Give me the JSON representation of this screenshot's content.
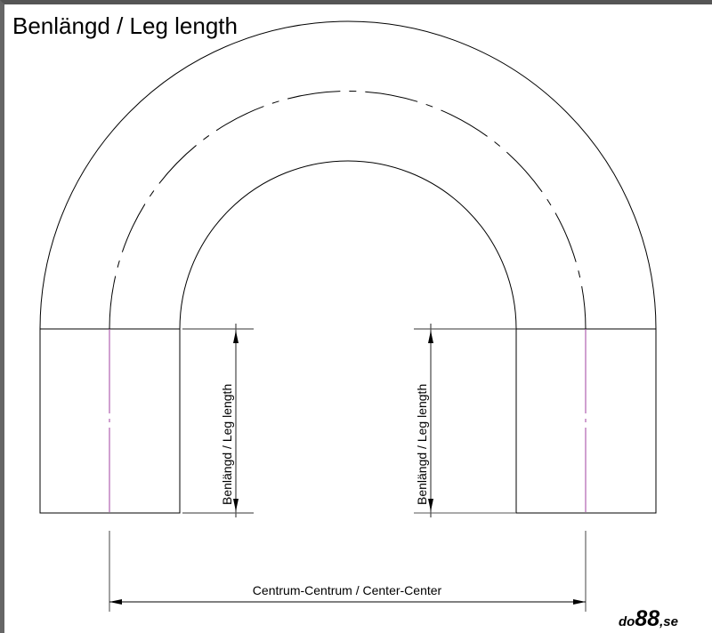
{
  "title": "Benlängd / Leg length",
  "left_dimension_label": "Benlängd / Leg length",
  "right_dimension_label": "Benlängd / Leg length",
  "bottom_dimension_label": "Centrum-Centrum / Center-Center",
  "logo": {
    "prefix": "do",
    "number": "88",
    "suffix": ",se"
  },
  "colors": {
    "line": "#000000",
    "centerline": "#a040a0",
    "dimension": "#555555"
  }
}
